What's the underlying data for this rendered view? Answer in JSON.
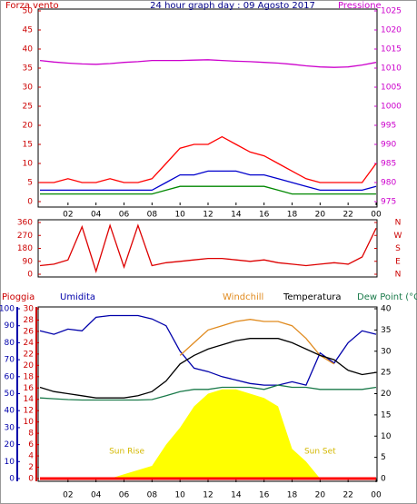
{
  "chart_data": [
    {
      "type": "line",
      "title": "24 hour graph day : 09 Agosto 2017",
      "xlim": [
        0,
        24
      ],
      "xticks": [
        {
          "value": 2,
          "label": "02"
        },
        {
          "value": 4,
          "label": "04"
        },
        {
          "value": 6,
          "label": "06"
        },
        {
          "value": 8,
          "label": "08"
        },
        10,
        12,
        14,
        16,
        18,
        20,
        22,
        {
          "value": 24,
          "label": "00"
        }
      ],
      "ylim": [
        0,
        50
      ],
      "yticks": [
        0,
        5,
        10,
        15,
        20,
        25,
        30,
        35,
        40,
        45,
        50
      ],
      "ycolor": "#cc0000",
      "y2lim": [
        975,
        1025
      ],
      "y2ticks": [
        975,
        980,
        985,
        990,
        995,
        1000,
        1005,
        1010,
        1015,
        1020,
        1025
      ],
      "y2color": "#cc00cc",
      "x": [
        0,
        1,
        2,
        3,
        4,
        5,
        6,
        7,
        8,
        9,
        10,
        11,
        12,
        13,
        14,
        15,
        16,
        17,
        18,
        19,
        20,
        21,
        22,
        23,
        24
      ],
      "series": [
        {
          "name": "Forza vento",
          "color": "#ff0000",
          "values": [
            5,
            5,
            6,
            5,
            5,
            6,
            5,
            5,
            6,
            10,
            14,
            15,
            15,
            17,
            15,
            13,
            12,
            10,
            8,
            6,
            5,
            5,
            5,
            5,
            10
          ]
        },
        {
          "color": "#0000cc",
          "values": [
            3,
            3,
            3,
            3,
            3,
            3,
            3,
            3,
            3,
            5,
            7,
            7,
            8,
            8,
            8,
            7,
            7,
            6,
            5,
            4,
            3,
            3,
            3,
            3,
            4
          ]
        },
        {
          "color": "#008800",
          "values": [
            2,
            2,
            2,
            2,
            2,
            2,
            2,
            2,
            2,
            3,
            4,
            4,
            4,
            4,
            4,
            4,
            4,
            3,
            2,
            2,
            2,
            2,
            2,
            2,
            2
          ]
        },
        {
          "name": "Pressione",
          "color": "#cc00cc",
          "axis": "y2",
          "values": [
            1012,
            1011.6,
            1011.3,
            1011.1,
            1011,
            1011.2,
            1011.5,
            1011.7,
            1012,
            1012,
            1012,
            1012.1,
            1012.2,
            1012,
            1011.8,
            1011.7,
            1011.5,
            1011.3,
            1011,
            1010.6,
            1010.3,
            1010.2,
            1010.3,
            1010.8,
            1011.5
          ]
        }
      ]
    },
    {
      "type": "line",
      "xlim": [
        0,
        24
      ],
      "ylim": [
        0,
        360
      ],
      "yticks": [
        0,
        90,
        180,
        270,
        360
      ],
      "ycolor": "#cc0000",
      "y2lim": [
        0,
        360
      ],
      "y2ticks": [
        {
          "value": 360,
          "label": "N"
        },
        {
          "value": 270,
          "label": "W"
        },
        {
          "value": 180,
          "label": "S"
        },
        {
          "value": 90,
          "label": "E"
        },
        {
          "value": 0,
          "label": "N"
        }
      ],
      "y2color": "#cc0000",
      "x": [
        0,
        1,
        2,
        3,
        4,
        5,
        6,
        7,
        8,
        9,
        10,
        11,
        12,
        13,
        14,
        15,
        16,
        17,
        18,
        19,
        20,
        21,
        22,
        23,
        24
      ],
      "series": [
        {
          "color": "#dd0000",
          "values": [
            60,
            70,
            100,
            330,
            20,
            340,
            50,
            340,
            60,
            80,
            90,
            100,
            110,
            110,
            100,
            90,
            100,
            80,
            70,
            60,
            70,
            80,
            70,
            120,
            320
          ]
        }
      ]
    },
    {
      "type": "line",
      "xlim": [
        0,
        24
      ],
      "xticks": [
        {
          "value": 2,
          "label": "02"
        },
        {
          "value": 4,
          "label": "04"
        },
        {
          "value": 6,
          "label": "06"
        },
        {
          "value": 8,
          "label": "08"
        },
        10,
        12,
        14,
        16,
        18,
        20,
        22,
        {
          "value": 24,
          "label": "00"
        }
      ],
      "ylim": [
        0,
        100
      ],
      "yticks": [
        0,
        10,
        20,
        30,
        40,
        50,
        60,
        70,
        80,
        90,
        100
      ],
      "ycolor": "#0000aa",
      "y3lim": [
        0,
        30
      ],
      "y3ticks": [
        0,
        2,
        4,
        6,
        8,
        10,
        12,
        14,
        16,
        18,
        20,
        22,
        24,
        26,
        28,
        30
      ],
      "y3color": "#cc0000",
      "y2lim": [
        0,
        40
      ],
      "y2ticks": [
        0,
        5,
        10,
        15,
        20,
        25,
        30,
        35,
        40
      ],
      "y2color": "#000000",
      "annotations": [
        {
          "text": "Sun Rise",
          "x": 6.2
        },
        {
          "text": "Sun Set",
          "x": 20
        }
      ],
      "x": [
        0,
        1,
        2,
        3,
        4,
        5,
        6,
        7,
        8,
        9,
        10,
        11,
        12,
        13,
        14,
        15,
        16,
        17,
        18,
        19,
        20,
        21,
        22,
        23,
        24
      ],
      "series": [
        {
          "color": "#ffff00",
          "kind": "area",
          "axis": "y2",
          "values": [
            0,
            0,
            0,
            0,
            0,
            0,
            1,
            2,
            3,
            8,
            12,
            17,
            20,
            21,
            21,
            20,
            19,
            17,
            7,
            4,
            0,
            0,
            0,
            0,
            0
          ]
        },
        {
          "name": "Pioggia",
          "color": "#ff0000",
          "axis": "y3",
          "values": [
            0,
            0,
            0,
            0,
            0,
            0,
            0,
            0,
            0,
            0,
            0,
            0,
            0,
            0,
            0,
            0,
            0,
            0,
            0,
            0,
            0,
            0,
            0,
            0,
            0
          ]
        },
        {
          "name": "Umidita",
          "color": "#0000aa",
          "values": [
            87,
            85,
            88,
            87,
            95,
            96,
            96,
            96,
            94,
            90,
            75,
            65,
            63,
            60,
            58,
            56,
            55,
            55,
            57,
            55,
            74,
            68,
            80,
            87,
            85
          ]
        },
        {
          "name": "Windchill",
          "color": "#e08a1e",
          "axis": "y2",
          "values": [
            null,
            null,
            null,
            null,
            null,
            null,
            null,
            null,
            null,
            null,
            29,
            32,
            35,
            36,
            37,
            37.5,
            37,
            37,
            36,
            33,
            29,
            27,
            null,
            null,
            null
          ]
        },
        {
          "name": "Temperatura",
          "color": "#000000",
          "axis": "y2",
          "values": [
            21.5,
            20.5,
            20,
            19.5,
            19,
            19,
            19,
            19.5,
            20.5,
            23,
            27,
            29,
            30.5,
            31.5,
            32.5,
            33,
            33,
            33,
            32,
            30.5,
            29,
            28,
            25.5,
            24.5,
            25
          ]
        },
        {
          "name": "Dew Point (°C",
          "color": "#1a7a4a",
          "axis": "y2",
          "values": [
            19,
            18.8,
            18.6,
            18.5,
            18.5,
            18.5,
            18.5,
            18.5,
            18.6,
            19.5,
            20.5,
            21,
            21,
            21.5,
            21.5,
            21.5,
            21,
            22,
            21.5,
            21.5,
            21,
            21,
            21,
            21,
            21.5
          ]
        }
      ]
    }
  ]
}
